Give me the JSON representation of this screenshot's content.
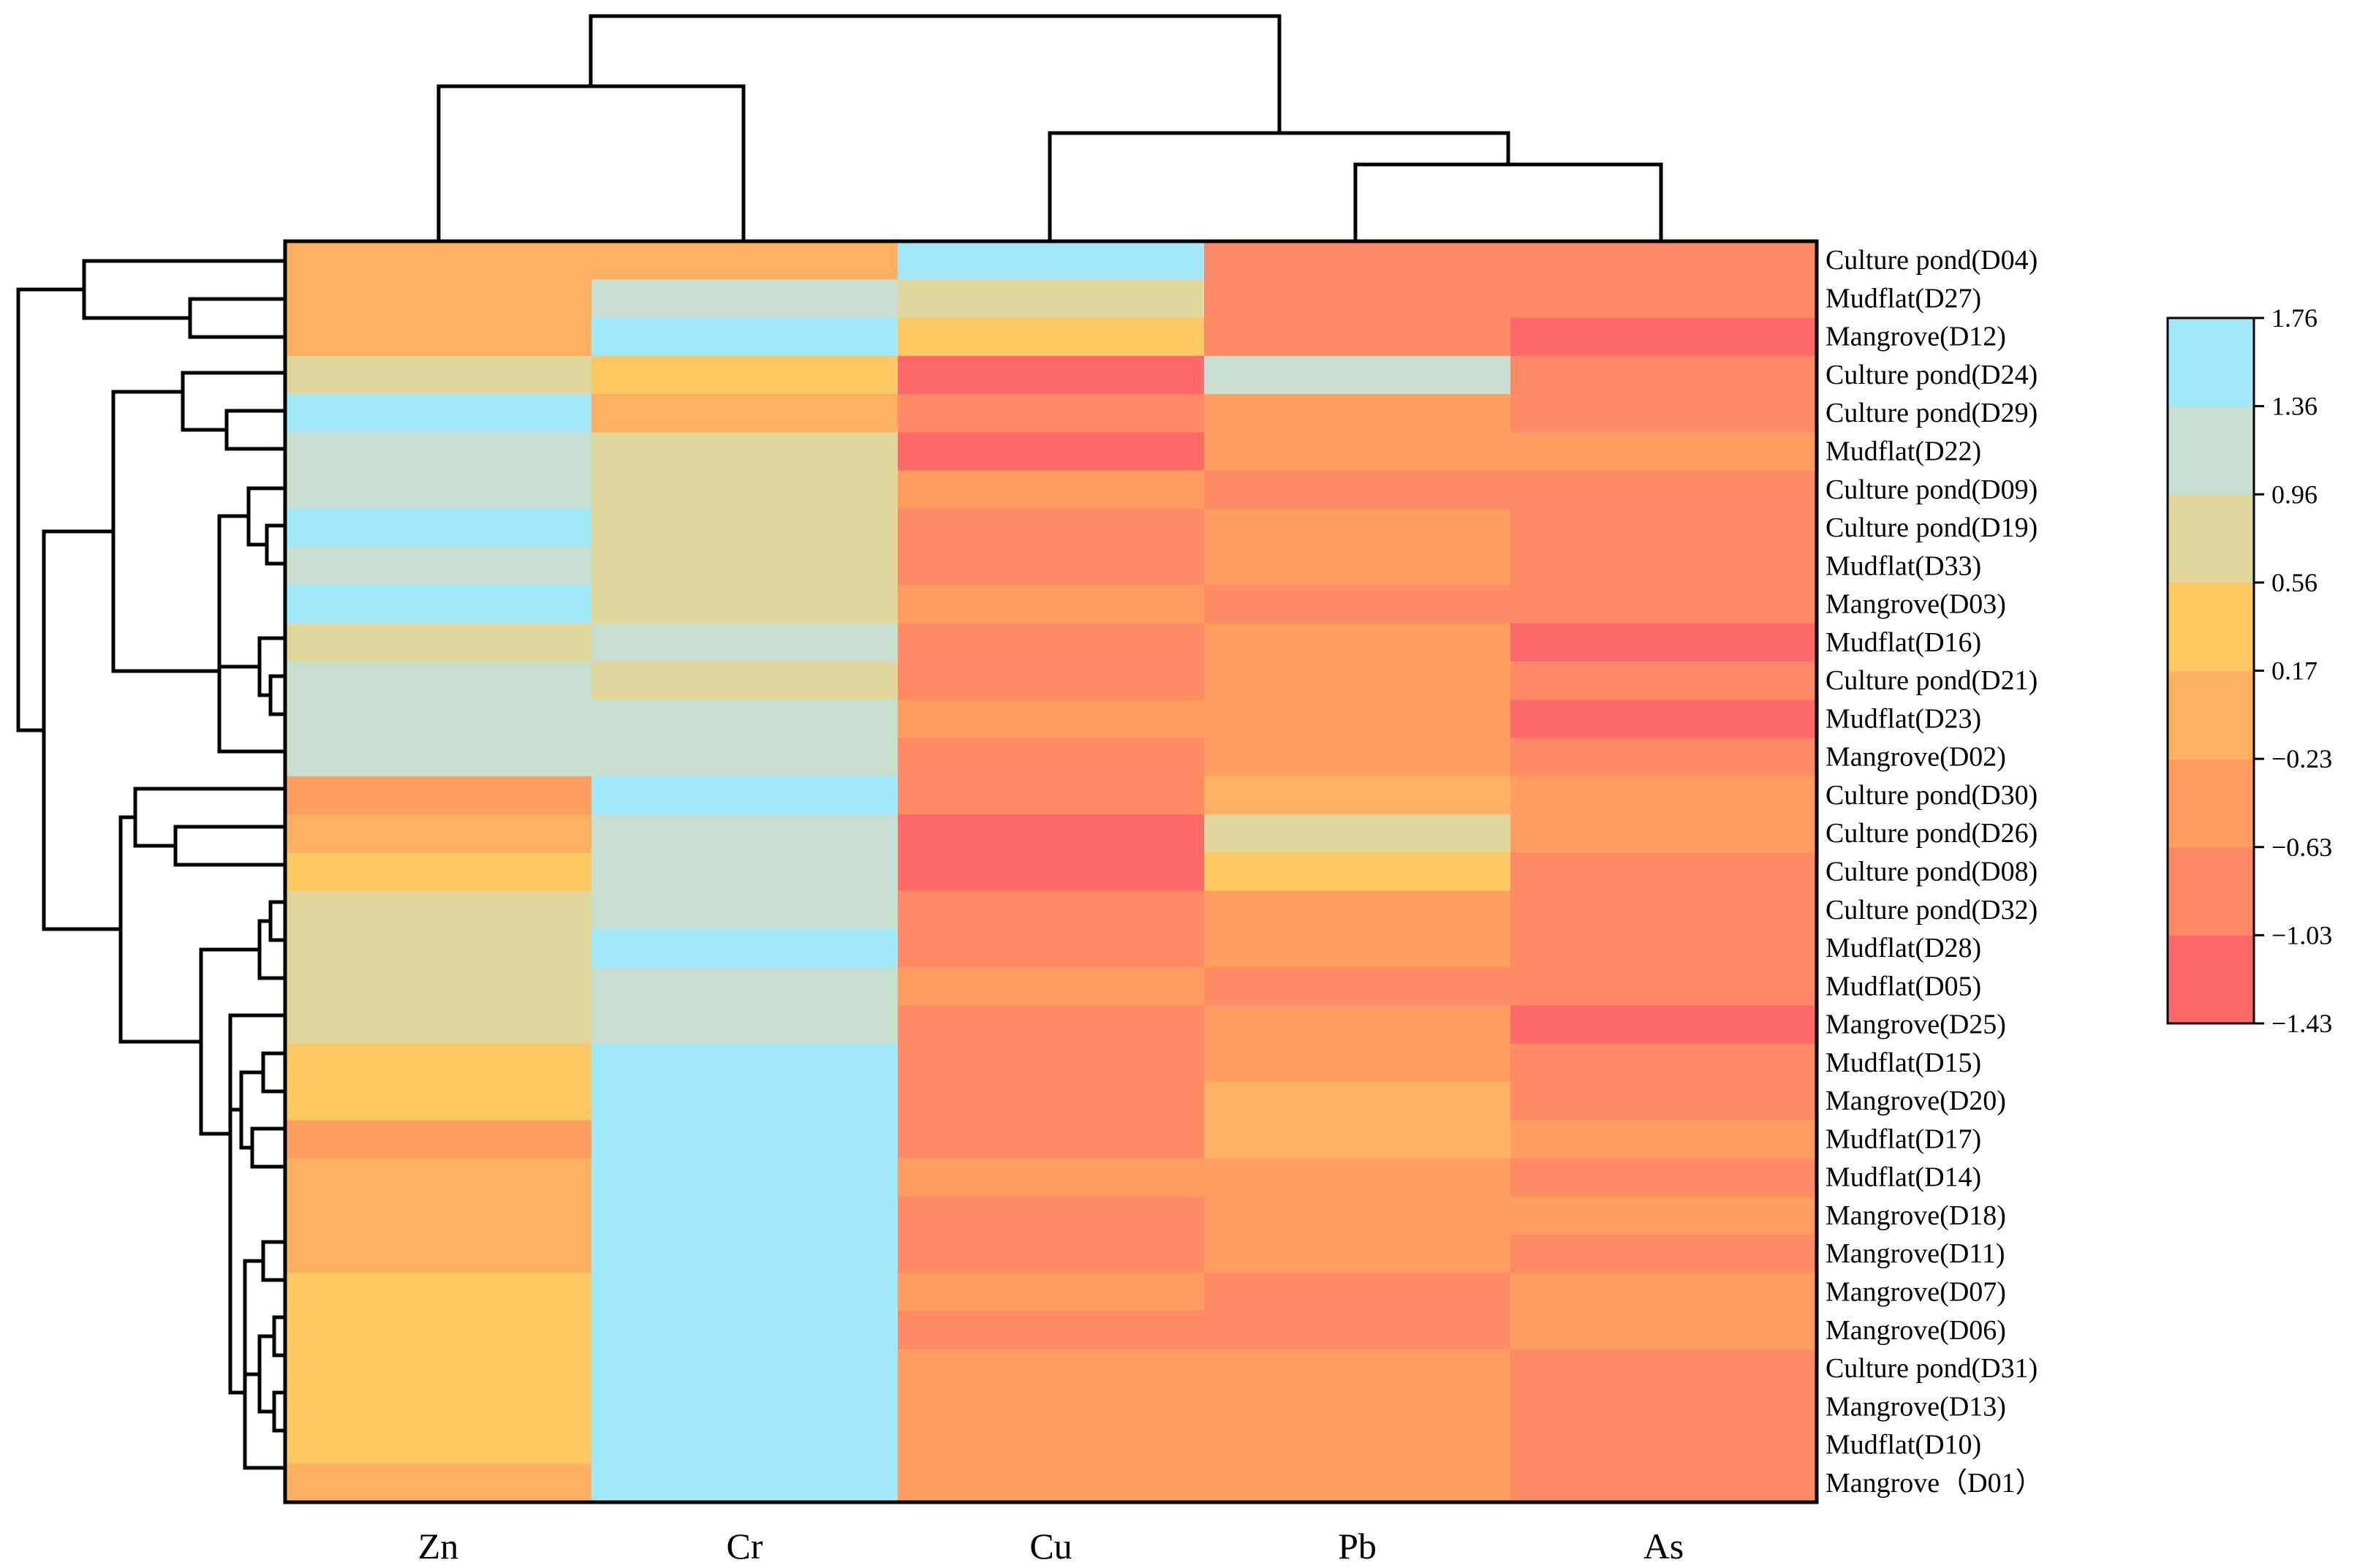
{
  "chart_data": {
    "type": "heatmap",
    "title": "",
    "columns": [
      "Zn",
      "Cr",
      "Cu",
      "Pb",
      "As"
    ],
    "rows": [
      "Culture pond(D04)",
      "Mudflat(D27)",
      "Mangrove(D12)",
      "Culture pond(D24)",
      "Culture pond(D29)",
      "Mudflat(D22)",
      "Culture pond(D09)",
      "Culture pond(D19)",
      "Mudflat(D33)",
      "Mangrove(D03)",
      "Mudflat(D16)",
      "Culture pond(D21)",
      "Mudflat(D23)",
      "Mangrove(D02)",
      "Culture pond(D30)",
      "Culture pond(D26)",
      "Culture pond(D08)",
      "Culture pond(D32)",
      "Mudflat(D28)",
      "Mudflat(D05)",
      "Mangrove(D25)",
      "Mudflat(D15)",
      "Mangrove(D20)",
      "Mudflat(D17)",
      "Mudflat(D14)",
      "Mangrove(D18)",
      "Mangrove(D11)",
      "Mangrove(D07)",
      "Mangrove(D06)",
      "Culture pond(D31)",
      "Mangrove(D13)",
      "Mudflat(D10)",
      "Mangrove（D01）"
    ],
    "values": [
      [
        0.0,
        0.0,
        1.6,
        -0.8,
        -0.8
      ],
      [
        0.0,
        1.2,
        0.8,
        -0.8,
        -0.8
      ],
      [
        0.0,
        1.6,
        0.4,
        -0.8,
        -1.2
      ],
      [
        0.8,
        0.4,
        -1.2,
        1.2,
        -0.8
      ],
      [
        1.6,
        0.0,
        -0.8,
        -0.4,
        -0.8
      ],
      [
        1.2,
        0.8,
        -1.3,
        -0.4,
        -0.4
      ],
      [
        1.2,
        0.8,
        -0.4,
        -0.8,
        -0.8
      ],
      [
        1.6,
        0.8,
        -0.8,
        -0.4,
        -0.8
      ],
      [
        1.2,
        0.8,
        -0.8,
        -0.4,
        -0.8
      ],
      [
        1.6,
        0.8,
        -0.4,
        -0.8,
        -0.8
      ],
      [
        0.8,
        1.2,
        -0.8,
        -0.4,
        -1.2
      ],
      [
        1.2,
        0.8,
        -0.8,
        -0.4,
        -0.8
      ],
      [
        1.2,
        1.2,
        -0.4,
        -0.4,
        -1.2
      ],
      [
        1.2,
        1.2,
        -0.8,
        -0.4,
        -0.8
      ],
      [
        -0.4,
        1.6,
        -0.8,
        0.0,
        -0.4
      ],
      [
        0.0,
        1.2,
        -1.3,
        0.8,
        -0.4
      ],
      [
        0.4,
        1.2,
        -1.3,
        0.4,
        -0.8
      ],
      [
        0.8,
        1.2,
        -0.8,
        -0.4,
        -0.8
      ],
      [
        0.8,
        1.6,
        -0.8,
        -0.4,
        -0.8
      ],
      [
        0.8,
        1.2,
        -0.4,
        -0.8,
        -0.8
      ],
      [
        0.8,
        1.2,
        -0.8,
        -0.4,
        -1.2
      ],
      [
        0.4,
        1.6,
        -0.8,
        -0.4,
        -0.8
      ],
      [
        0.4,
        1.6,
        -0.8,
        0.0,
        -0.8
      ],
      [
        -0.4,
        1.6,
        -0.8,
        0.0,
        -0.4
      ],
      [
        0.0,
        1.6,
        -0.4,
        -0.4,
        -0.8
      ],
      [
        0.0,
        1.6,
        -0.8,
        -0.4,
        -0.4
      ],
      [
        0.0,
        1.6,
        -0.8,
        -0.4,
        -0.8
      ],
      [
        0.4,
        1.6,
        -0.4,
        -0.8,
        -0.4
      ],
      [
        0.4,
        1.6,
        -0.8,
        -0.8,
        -0.4
      ],
      [
        0.4,
        1.6,
        -0.4,
        -0.4,
        -0.8
      ],
      [
        0.4,
        1.6,
        -0.4,
        -0.4,
        -0.8
      ],
      [
        0.4,
        1.6,
        -0.4,
        -0.4,
        -0.8
      ],
      [
        0.0,
        1.6,
        -0.4,
        -0.4,
        -0.8
      ]
    ],
    "colorbar": {
      "ticks": [
        "1.76",
        "1.36",
        "0.96",
        "0.56",
        "0.17",
        "−0.23",
        "−0.63",
        "−1.03",
        "−1.43"
      ],
      "range": [
        -1.43,
        1.76
      ],
      "colors_low_to_high": [
        "#fe6a6a",
        "#ff8a66",
        "#ff9e60",
        "#fdb160",
        "#fcc863",
        "#e1d79c",
        "#c7e0d2",
        "#a1e8fb"
      ]
    },
    "column_dendrogram": {
      "order": [
        "Zn",
        "Cr",
        "Cu",
        "Pb",
        "As"
      ],
      "merges": [
        [
          "Zn",
          "Cr"
        ],
        [
          "Pb",
          "As"
        ],
        [
          "Cu",
          "Pb+As"
        ],
        [
          "Zn+Cr",
          "Cu+Pb+As"
        ]
      ]
    },
    "row_dendrogram": {
      "shown": true,
      "leaf_order": "same as rows"
    }
  }
}
